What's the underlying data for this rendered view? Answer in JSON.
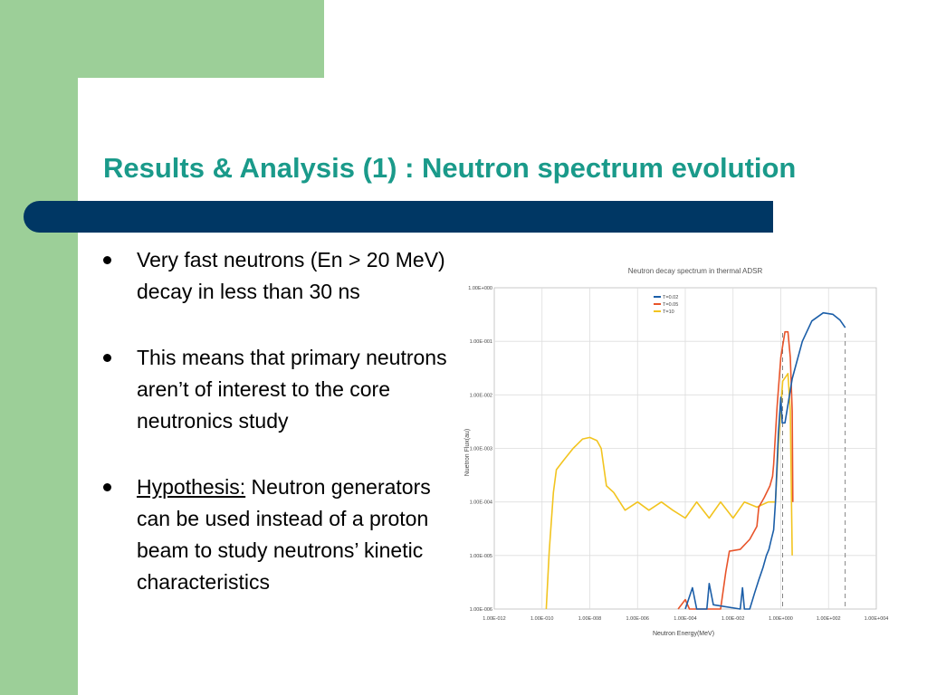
{
  "slide": {
    "title": "Results & Analysis (1) : Neutron spectrum evolution",
    "accent_green": "#9ccf98",
    "accent_navy": "#003764",
    "title_color": "#1a9a8a"
  },
  "bullets": [
    {
      "text": "Very fast neutrons (En > 20 MeV) decay in less than 30 ns"
    },
    {
      "text": "This means that primary neutrons aren’t of interest to the core neutronics study"
    },
    {
      "lead": "Hypothesis:",
      "text": " Neutron generators can be used instead of a proton beam to study neutrons’ kinetic characteristics"
    }
  ],
  "chart_data": {
    "type": "line",
    "title": "Neutron decay spectrum in thermal ADSR",
    "xlabel": "Neutron Energy(MeV)",
    "ylabel": "Nuetron Flux(au)",
    "x_scale": "log",
    "y_scale": "log",
    "xlim": [
      1e-12,
      10000
    ],
    "ylim": [
      1e-06,
      1
    ],
    "x_ticks": [
      "1.00E-012",
      "1.00E-010",
      "1.00E-008",
      "1.00E-006",
      "1.00E-004",
      "1.00E-002",
      "1.00E+000",
      "1.00E+002",
      "1.00E+004"
    ],
    "y_ticks": [
      "1.00E-006",
      "1.00E-005",
      "1.00E-004",
      "1.00E-003",
      "1.00E-002",
      "1.00E-001",
      "1.00E+000"
    ],
    "grid": true,
    "legend_position": "top-left",
    "reference_lines_x": [
      1.2,
      500
    ],
    "series": [
      {
        "name": "T=0.02",
        "color": "#1b5ea8",
        "points": [
          [
            0.0001,
            1e-06
          ],
          [
            0.0002,
            2.5e-06
          ],
          [
            0.0003,
            1e-06
          ],
          [
            0.0008,
            1e-06
          ],
          [
            0.001,
            3e-06
          ],
          [
            0.0015,
            1.2e-06
          ],
          [
            0.02,
            1e-06
          ],
          [
            0.025,
            2.5e-06
          ],
          [
            0.03,
            1e-06
          ],
          [
            0.05,
            1e-06
          ],
          [
            0.08,
            2e-06
          ],
          [
            0.12,
            3.5e-06
          ],
          [
            0.18,
            6e-06
          ],
          [
            0.25,
            1e-05
          ],
          [
            0.32,
            1.3e-05
          ],
          [
            0.4,
            2e-05
          ],
          [
            0.5,
            3e-05
          ],
          [
            0.6,
            0.0001
          ],
          [
            0.8,
            0.002
          ],
          [
            1.0,
            0.009
          ],
          [
            1.15,
            0.003
          ],
          [
            1.5,
            0.003
          ],
          [
            3,
            0.02
          ],
          [
            8,
            0.1
          ],
          [
            20,
            0.24
          ],
          [
            60,
            0.34
          ],
          [
            150,
            0.32
          ],
          [
            300,
            0.25
          ],
          [
            500,
            0.18
          ]
        ]
      },
      {
        "name": "T=0.05",
        "color": "#e8542a",
        "points": [
          [
            5e-05,
            1e-06
          ],
          [
            0.0001,
            1.5e-06
          ],
          [
            0.00015,
            1e-06
          ],
          [
            0.0003,
            1e-06
          ],
          [
            0.0008,
            1e-06
          ],
          [
            0.003,
            1e-06
          ],
          [
            0.005,
            5e-06
          ],
          [
            0.007,
            1.2e-05
          ],
          [
            0.02,
            1.3e-05
          ],
          [
            0.05,
            2e-05
          ],
          [
            0.1,
            3.5e-05
          ],
          [
            0.12,
            8e-05
          ],
          [
            0.2,
            0.00012
          ],
          [
            0.35,
            0.0002
          ],
          [
            0.45,
            0.0003
          ],
          [
            0.5,
            0.0005
          ],
          [
            0.7,
            0.006
          ],
          [
            1.0,
            0.05
          ],
          [
            1.5,
            0.15
          ],
          [
            2.0,
            0.15
          ],
          [
            2.5,
            0.05
          ],
          [
            3,
            0.005
          ],
          [
            3.2,
            0.0001
          ]
        ]
      },
      {
        "name": "T=10",
        "color": "#f2c41f",
        "points": [
          [
            1.5e-10,
            1e-06
          ],
          [
            2e-10,
            1.2e-05
          ],
          [
            3e-10,
            0.00015
          ],
          [
            4e-10,
            0.0004
          ],
          [
            8e-10,
            0.0006
          ],
          [
            2e-09,
            0.001
          ],
          [
            5e-09,
            0.0015
          ],
          [
            1e-08,
            0.0016
          ],
          [
            2e-08,
            0.0014
          ],
          [
            3e-08,
            0.001
          ],
          [
            5e-08,
            0.0002
          ],
          [
            1e-07,
            0.00015
          ],
          [
            3e-07,
            7e-05
          ],
          [
            1e-06,
            0.0001
          ],
          [
            3e-06,
            7e-05
          ],
          [
            1e-05,
            0.0001
          ],
          [
            3e-05,
            7e-05
          ],
          [
            0.0001,
            5e-05
          ],
          [
            0.0003,
            0.0001
          ],
          [
            0.001,
            5e-05
          ],
          [
            0.003,
            0.0001
          ],
          [
            0.01,
            5e-05
          ],
          [
            0.03,
            0.0001
          ],
          [
            0.1,
            8e-05
          ],
          [
            0.3,
            0.0001
          ],
          [
            0.6,
            0.0001
          ],
          [
            0.8,
            0.0012
          ],
          [
            1.2,
            0.018
          ],
          [
            2.0,
            0.025
          ],
          [
            2.5,
            0.005
          ],
          [
            3,
            1e-05
          ]
        ]
      }
    ]
  }
}
